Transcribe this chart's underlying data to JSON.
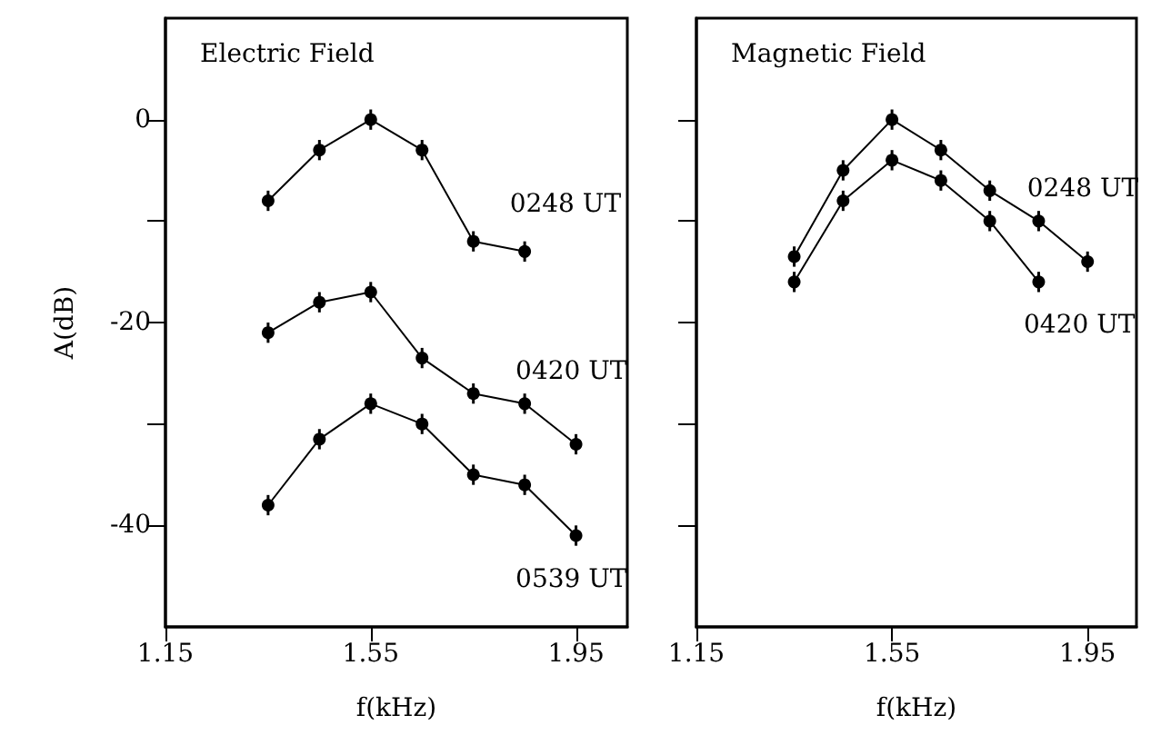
{
  "chart_data": [
    {
      "type": "line",
      "title": "Electric Field",
      "xlabel": "f(kHz)",
      "ylabel": "A(dB)",
      "marker": "circle",
      "line_style": "solid",
      "grid": false,
      "legend": false,
      "xlim": [
        1.15,
        2.05
      ],
      "xticks": [
        1.15,
        1.55,
        1.95
      ],
      "ylim": [
        -50,
        10
      ],
      "yticks": [
        {
          "value": -40,
          "label": "-40"
        },
        {
          "value": -30,
          "label": null
        },
        {
          "value": -20,
          "label": "-20"
        },
        {
          "value": -10,
          "label": null
        },
        0
      ],
      "series": [
        {
          "name": "0248 UT",
          "color": "#000000",
          "x": [
            1.35,
            1.45,
            1.55,
            1.65,
            1.75,
            1.85
          ],
          "values": [
            -8,
            -3,
            0,
            -3,
            -12,
            -13
          ],
          "errors": [
            1,
            1,
            1,
            1,
            1,
            1
          ]
        },
        {
          "name": "0420 UT",
          "color": "#000000",
          "x": [
            1.35,
            1.45,
            1.55,
            1.65,
            1.75,
            1.85,
            1.95
          ],
          "values": [
            -21,
            -18,
            -17,
            -23.5,
            -27,
            -28,
            -32
          ],
          "errors": [
            1,
            1,
            1,
            1,
            1,
            1,
            1
          ]
        },
        {
          "name": "0539 UT",
          "color": "#000000",
          "x": [
            1.35,
            1.45,
            1.55,
            1.65,
            1.75,
            1.85,
            1.95
          ],
          "values": [
            -38,
            -31.5,
            -28,
            -30,
            -35,
            -36,
            -41
          ],
          "errors": [
            1,
            1,
            1,
            1,
            1,
            1,
            1
          ]
        }
      ]
    },
    {
      "type": "line",
      "title": "Magnetic Field",
      "xlabel": "f(kHz)",
      "marker": "circle",
      "line_style": "solid",
      "grid": false,
      "legend": false,
      "tick_labels": "x",
      "xlim": [
        1.15,
        2.05
      ],
      "xticks": [
        1.15,
        1.55,
        1.95
      ],
      "ylim": [
        -50,
        10
      ],
      "yticks": [
        -40,
        -30,
        -20,
        -10,
        0
      ],
      "series": [
        {
          "name": "0248 UT",
          "color": "#000000",
          "x": [
            1.35,
            1.45,
            1.55,
            1.65,
            1.75,
            1.85,
            1.95
          ],
          "values": [
            -13.5,
            -5,
            0,
            -3,
            -7,
            -10,
            -14
          ],
          "errors": [
            1,
            1,
            1,
            1,
            1,
            1,
            1
          ]
        },
        {
          "name": "0420 UT",
          "color": "#000000",
          "x": [
            1.35,
            1.45,
            1.55,
            1.65,
            1.75,
            1.85
          ],
          "values": [
            -16,
            -8,
            -4,
            -6,
            -10,
            -16
          ],
          "errors": [
            1,
            1,
            1,
            1,
            1,
            1
          ]
        }
      ]
    }
  ]
}
